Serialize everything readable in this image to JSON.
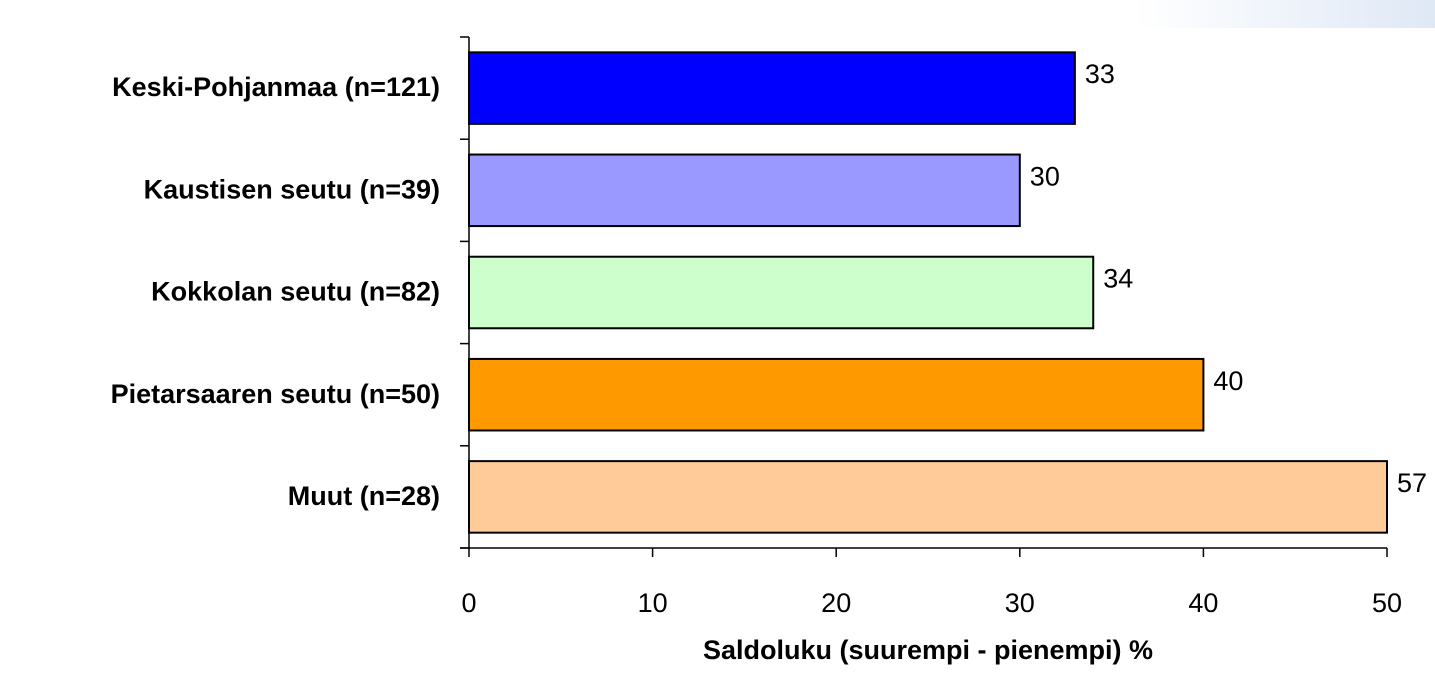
{
  "chart_data": {
    "type": "bar",
    "orientation": "horizontal",
    "categories": [
      "Keski-Pohjanmaa (n=121)",
      "Kaustisen seutu (n=39)",
      "Kokkolan seutu (n=82)",
      "Pietarsaaren seutu (n=50)",
      "Muut (n=28)"
    ],
    "values": [
      33,
      30,
      34,
      40,
      57
    ],
    "colors": [
      "#0000ff",
      "#9999ff",
      "#ccffcc",
      "#ff9900",
      "#ffcc99"
    ],
    "data_labels": [
      "33",
      "30",
      "34",
      "40",
      "57"
    ],
    "xlabel": "Saldoluku (suurempi - pienempi) %",
    "ylabel": "",
    "xlim": [
      0,
      50
    ],
    "xticks": [
      "0",
      "10",
      "20",
      "30",
      "40",
      "50"
    ],
    "grid": false,
    "legend": "none",
    "bar_values_clipped_at_axis_max": true
  }
}
